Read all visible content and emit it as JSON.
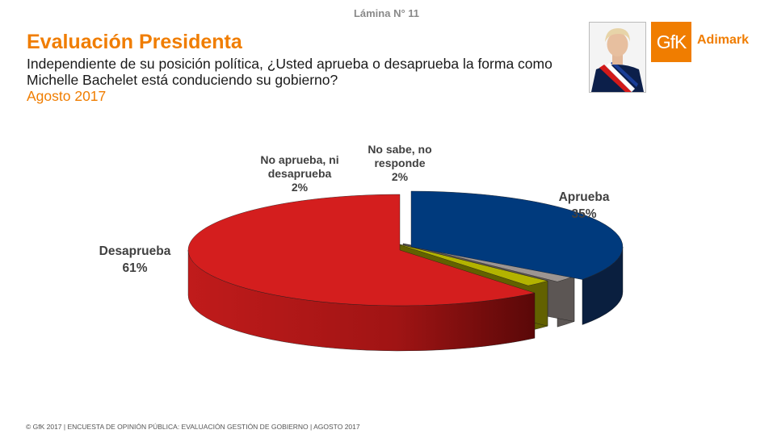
{
  "header": {
    "slide_label": "Lámina N° 11",
    "title": "Evaluación Presidenta",
    "question": "Independiente de su posición política, ¿Usted aprueba o desaprueba la forma como Michelle Bachelet está conduciendo su gobierno?",
    "date": "Agosto 2017"
  },
  "logo": {
    "mark": "GfK",
    "word": "Adimark",
    "color": "#f07d00"
  },
  "footer": {
    "text": "© GfK 2017 | ENCUESTA DE OPINIÓN PÚBLICA: EVALUACIÓN GESTIÓN DE GOBIERNO | AGOSTO 2017"
  },
  "chart_data": {
    "type": "pie",
    "title": "",
    "slices": [
      {
        "label_lines": [
          "Aprueba"
        ],
        "value": 35,
        "value_text": "35%",
        "color": "#003a7d",
        "side_color": "#0a1f3f"
      },
      {
        "label_lines": [
          "No sabe, no",
          "responde"
        ],
        "value": 2,
        "value_text": "2%",
        "color": "#9c9592",
        "side_color": "#5c5654"
      },
      {
        "label_lines": [
          "No aprueba, ni",
          "desaprueba"
        ],
        "value": 2,
        "value_text": "2%",
        "color": "#b3b300",
        "side_color": "#626100"
      },
      {
        "label_lines": [
          "Desaprueba"
        ],
        "value": 61,
        "value_text": "61%",
        "color": "#d41e1e",
        "side_color": "#8c1111"
      }
    ]
  }
}
